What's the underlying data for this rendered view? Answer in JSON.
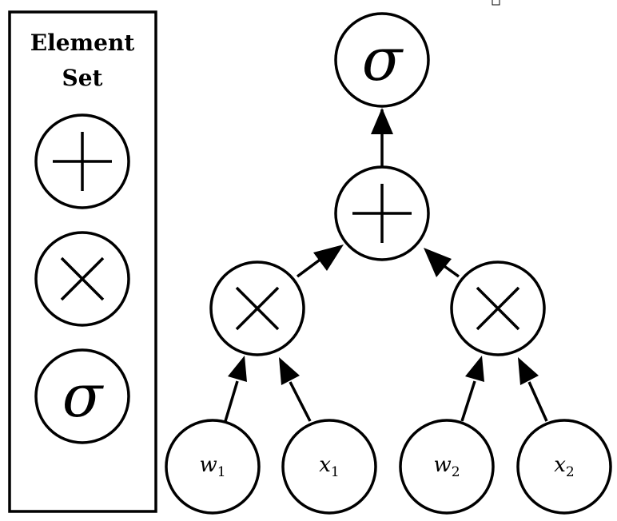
{
  "legend": {
    "title_line1": "Element",
    "title_line2": "Set",
    "items": [
      {
        "icon": "plus-icon"
      },
      {
        "icon": "times-icon"
      },
      {
        "symbol": "σ"
      }
    ]
  },
  "graph": {
    "output": {
      "symbol": "σ"
    },
    "sum": {
      "icon": "plus-icon"
    },
    "left_product": {
      "icon": "times-icon"
    },
    "right_product": {
      "icon": "times-icon"
    },
    "inputs": [
      {
        "var": "w",
        "sub": "1"
      },
      {
        "var": "x",
        "sub": "1"
      },
      {
        "var": "w",
        "sub": "2"
      },
      {
        "var": "x",
        "sub": "2"
      }
    ]
  }
}
